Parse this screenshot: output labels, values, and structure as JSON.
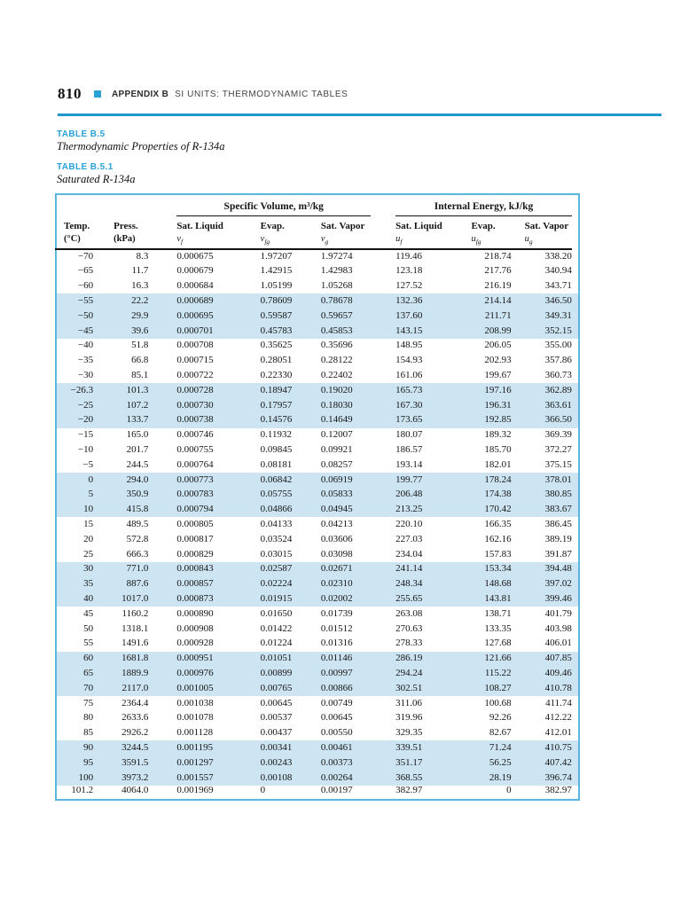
{
  "page_header": {
    "page_number": "810",
    "appendix_label": "APPENDIX B",
    "running_title": "SI UNITS: THERMODYNAMIC TABLES"
  },
  "captions": {
    "b5_label": "TABLE B.5",
    "b5_title": "Thermodynamic Properties of R-134a",
    "b51_label": "TABLE B.5.1",
    "b51_title": "Saturated R-134a"
  },
  "colors": {
    "accent_cyan": "#1e97cb",
    "heading_cyan": "#2aa2d5",
    "table_border": "#5ab6de",
    "row_shade": "#cde4f2"
  },
  "table": {
    "group_headers": [
      {
        "label": "Specific Volume, m³/kg"
      },
      {
        "label": "Internal Energy, kJ/kg"
      }
    ],
    "columns": [
      {
        "line1": "Temp.",
        "line2": "(°C)"
      },
      {
        "line1": "Press.",
        "line2": "(kPa)"
      },
      {
        "line1": "Sat. Liquid",
        "sym": "v",
        "sub": "f"
      },
      {
        "line1": "Evap.",
        "sym": "v",
        "sub": "fg"
      },
      {
        "line1": "Sat. Vapor",
        "sym": "v",
        "sub": "g"
      },
      {
        "line1": "Sat. Liquid",
        "sym": "u",
        "sub": "f"
      },
      {
        "line1": "Evap.",
        "sym": "u",
        "sub": "fg"
      },
      {
        "line1": "Sat. Vapor",
        "sym": "u",
        "sub": "g"
      }
    ],
    "rows": [
      [
        "−70",
        "8.3",
        "0.000675",
        "1.97207",
        "1.97274",
        "119.46",
        "218.74",
        "338.20"
      ],
      [
        "−65",
        "11.7",
        "0.000679",
        "1.42915",
        "1.42983",
        "123.18",
        "217.76",
        "340.94"
      ],
      [
        "−60",
        "16.3",
        "0.000684",
        "1.05199",
        "1.05268",
        "127.52",
        "216.19",
        "343.71"
      ],
      [
        "−55",
        "22.2",
        "0.000689",
        "0.78609",
        "0.78678",
        "132.36",
        "214.14",
        "346.50"
      ],
      [
        "−50",
        "29.9",
        "0.000695",
        "0.59587",
        "0.59657",
        "137.60",
        "211.71",
        "349.31"
      ],
      [
        "−45",
        "39.6",
        "0.000701",
        "0.45783",
        "0.45853",
        "143.15",
        "208.99",
        "352.15"
      ],
      [
        "−40",
        "51.8",
        "0.000708",
        "0.35625",
        "0.35696",
        "148.95",
        "206.05",
        "355.00"
      ],
      [
        "−35",
        "66.8",
        "0.000715",
        "0.28051",
        "0.28122",
        "154.93",
        "202.93",
        "357.86"
      ],
      [
        "−30",
        "85.1",
        "0.000722",
        "0.22330",
        "0.22402",
        "161.06",
        "199.67",
        "360.73"
      ],
      [
        "−26.3",
        "101.3",
        "0.000728",
        "0.18947",
        "0.19020",
        "165.73",
        "197.16",
        "362.89"
      ],
      [
        "−25",
        "107.2",
        "0.000730",
        "0.17957",
        "0.18030",
        "167.30",
        "196.31",
        "363.61"
      ],
      [
        "−20",
        "133.7",
        "0.000738",
        "0.14576",
        "0.14649",
        "173.65",
        "192.85",
        "366.50"
      ],
      [
        "−15",
        "165.0",
        "0.000746",
        "0.11932",
        "0.12007",
        "180.07",
        "189.32",
        "369.39"
      ],
      [
        "−10",
        "201.7",
        "0.000755",
        "0.09845",
        "0.09921",
        "186.57",
        "185.70",
        "372.27"
      ],
      [
        "−5",
        "244.5",
        "0.000764",
        "0.08181",
        "0.08257",
        "193.14",
        "182.01",
        "375.15"
      ],
      [
        "0",
        "294.0",
        "0.000773",
        "0.06842",
        "0.06919",
        "199.77",
        "178.24",
        "378.01"
      ],
      [
        "5",
        "350.9",
        "0.000783",
        "0.05755",
        "0.05833",
        "206.48",
        "174.38",
        "380.85"
      ],
      [
        "10",
        "415.8",
        "0.000794",
        "0.04866",
        "0.04945",
        "213.25",
        "170.42",
        "383.67"
      ],
      [
        "15",
        "489.5",
        "0.000805",
        "0.04133",
        "0.04213",
        "220.10",
        "166.35",
        "386.45"
      ],
      [
        "20",
        "572.8",
        "0.000817",
        "0.03524",
        "0.03606",
        "227.03",
        "162.16",
        "389.19"
      ],
      [
        "25",
        "666.3",
        "0.000829",
        "0.03015",
        "0.03098",
        "234.04",
        "157.83",
        "391.87"
      ],
      [
        "30",
        "771.0",
        "0.000843",
        "0.02587",
        "0.02671",
        "241.14",
        "153.34",
        "394.48"
      ],
      [
        "35",
        "887.6",
        "0.000857",
        "0.02224",
        "0.02310",
        "248.34",
        "148.68",
        "397.02"
      ],
      [
        "40",
        "1017.0",
        "0.000873",
        "0.01915",
        "0.02002",
        "255.65",
        "143.81",
        "399.46"
      ],
      [
        "45",
        "1160.2",
        "0.000890",
        "0.01650",
        "0.01739",
        "263.08",
        "138.71",
        "401.79"
      ],
      [
        "50",
        "1318.1",
        "0.000908",
        "0.01422",
        "0.01512",
        "270.63",
        "133.35",
        "403.98"
      ],
      [
        "55",
        "1491.6",
        "0.000928",
        "0.01224",
        "0.01316",
        "278.33",
        "127.68",
        "406.01"
      ],
      [
        "60",
        "1681.8",
        "0.000951",
        "0.01051",
        "0.01146",
        "286.19",
        "121.66",
        "407.85"
      ],
      [
        "65",
        "1889.9",
        "0.000976",
        "0.00899",
        "0.00997",
        "294.24",
        "115.22",
        "409.46"
      ],
      [
        "70",
        "2117.0",
        "0.001005",
        "0.00765",
        "0.00866",
        "302.51",
        "108.27",
        "410.78"
      ],
      [
        "75",
        "2364.4",
        "0.001038",
        "0.00645",
        "0.00749",
        "311.06",
        "100.68",
        "411.74"
      ],
      [
        "80",
        "2633.6",
        "0.001078",
        "0.00537",
        "0.00645",
        "319.96",
        "92.26",
        "412.22"
      ],
      [
        "85",
        "2926.2",
        "0.001128",
        "0.00437",
        "0.00550",
        "329.35",
        "82.67",
        "412.01"
      ],
      [
        "90",
        "3244.5",
        "0.001195",
        "0.00341",
        "0.00461",
        "339.51",
        "71.24",
        "410.75"
      ],
      [
        "95",
        "3591.5",
        "0.001297",
        "0.00243",
        "0.00373",
        "351.17",
        "56.25",
        "407.42"
      ],
      [
        "100",
        "3973.2",
        "0.001557",
        "0.00108",
        "0.00264",
        "368.55",
        "28.19",
        "396.74"
      ],
      [
        "101.2",
        "4064.0",
        "0.001969",
        "0",
        "0.00197",
        "382.97",
        "0",
        "382.97"
      ]
    ]
  }
}
